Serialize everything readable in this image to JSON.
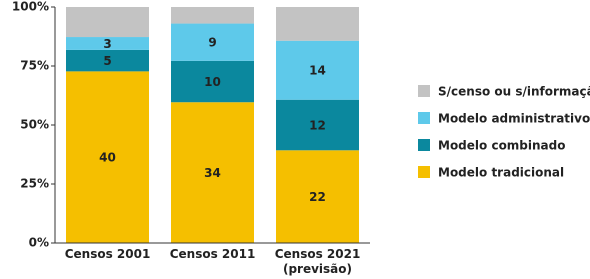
{
  "chart_data": {
    "type": "stacked_bar_100",
    "categories": [
      [
        "Censos 2001"
      ],
      [
        "Censos 2011"
      ],
      [
        "Censos 2021",
        "(previsão)"
      ]
    ],
    "series": [
      {
        "name": "Modelo tradicional",
        "color": "#f5bf00",
        "values": [
          40,
          34,
          22
        ]
      },
      {
        "name": "Modelo combinado",
        "color": "#0b889e",
        "values": [
          5,
          10,
          12
        ]
      },
      {
        "name": "Modelo administrativo",
        "color": "#5ec9ea",
        "values": [
          3,
          9,
          14
        ]
      },
      {
        "name": "S/censo ou s/informação",
        "color": "#c3c3c3",
        "values": [
          7,
          4,
          8
        ],
        "labels": false
      }
    ],
    "ylim": [
      0,
      100
    ],
    "yticks": [
      {
        "value": 0,
        "label": "0%"
      },
      {
        "value": 25,
        "label": "25%"
      },
      {
        "value": 50,
        "label": "50%"
      },
      {
        "value": 75,
        "label": "75%"
      },
      {
        "value": 100,
        "label": "100%"
      }
    ],
    "legend": "right"
  }
}
